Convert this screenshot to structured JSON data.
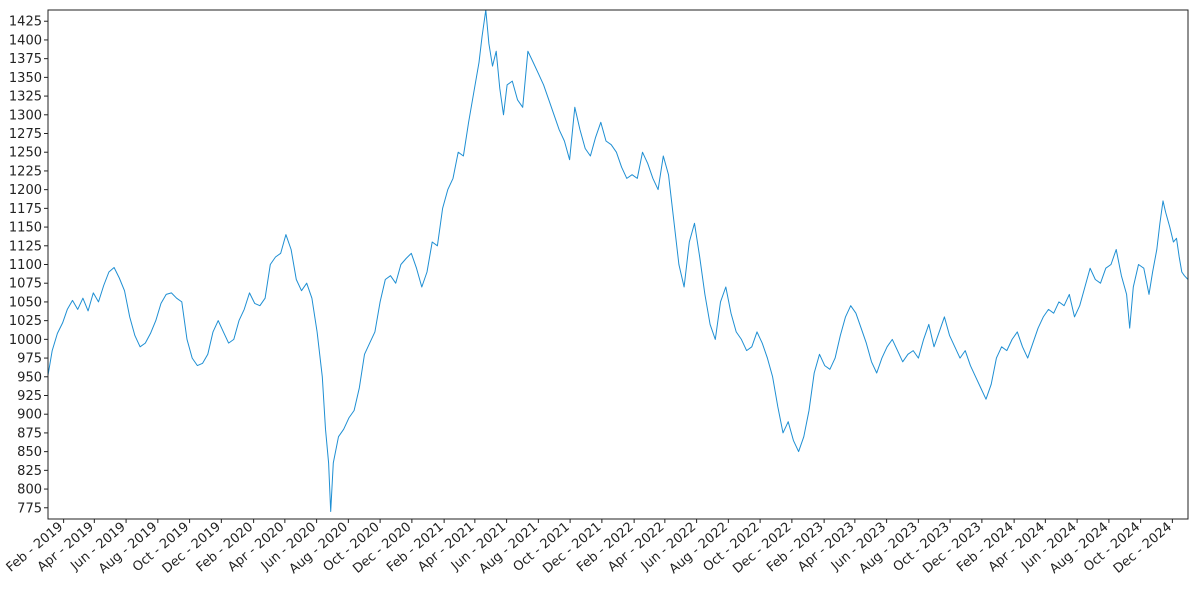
{
  "chart_data": {
    "type": "line",
    "title": "",
    "xlabel": "",
    "ylabel": "",
    "grid": false,
    "legend": "none",
    "ylim": [
      760,
      1440
    ],
    "xlim": [
      "2019-01-02",
      "2024-12-31"
    ],
    "yticks": [
      775,
      800,
      825,
      850,
      875,
      900,
      925,
      950,
      975,
      1000,
      1025,
      1050,
      1075,
      1100,
      1125,
      1150,
      1175,
      1200,
      1225,
      1250,
      1275,
      1300,
      1325,
      1350,
      1375,
      1400,
      1425
    ],
    "xticks": [
      {
        "date": "2019-02-01",
        "label": "Feb - 2019"
      },
      {
        "date": "2019-04-01",
        "label": "Apr - 2019"
      },
      {
        "date": "2019-06-01",
        "label": "Jun - 2019"
      },
      {
        "date": "2019-08-01",
        "label": "Aug - 2019"
      },
      {
        "date": "2019-10-01",
        "label": "Oct - 2019"
      },
      {
        "date": "2019-12-01",
        "label": "Dec - 2019"
      },
      {
        "date": "2020-02-01",
        "label": "Feb - 2020"
      },
      {
        "date": "2020-04-01",
        "label": "Apr - 2020"
      },
      {
        "date": "2020-06-01",
        "label": "Jun - 2020"
      },
      {
        "date": "2020-08-01",
        "label": "Aug - 2020"
      },
      {
        "date": "2020-10-01",
        "label": "Oct - 2020"
      },
      {
        "date": "2020-12-01",
        "label": "Dec - 2020"
      },
      {
        "date": "2021-02-01",
        "label": "Feb - 2021"
      },
      {
        "date": "2021-04-01",
        "label": "Apr - 2021"
      },
      {
        "date": "2021-06-01",
        "label": "Jun - 2021"
      },
      {
        "date": "2021-08-01",
        "label": "Aug - 2021"
      },
      {
        "date": "2021-10-01",
        "label": "Oct - 2021"
      },
      {
        "date": "2021-12-01",
        "label": "Dec - 2021"
      },
      {
        "date": "2022-02-01",
        "label": "Feb - 2022"
      },
      {
        "date": "2022-04-01",
        "label": "Apr - 2022"
      },
      {
        "date": "2022-06-01",
        "label": "Jun - 2022"
      },
      {
        "date": "2022-08-01",
        "label": "Aug - 2022"
      },
      {
        "date": "2022-10-01",
        "label": "Oct - 2022"
      },
      {
        "date": "2022-12-01",
        "label": "Dec - 2022"
      },
      {
        "date": "2023-02-01",
        "label": "Feb - 2023"
      },
      {
        "date": "2023-04-01",
        "label": "Apr - 2023"
      },
      {
        "date": "2023-06-01",
        "label": "Jun - 2023"
      },
      {
        "date": "2023-08-01",
        "label": "Aug - 2023"
      },
      {
        "date": "2023-10-01",
        "label": "Oct - 2023"
      },
      {
        "date": "2023-12-01",
        "label": "Dec - 2023"
      },
      {
        "date": "2024-02-01",
        "label": "Feb - 2024"
      },
      {
        "date": "2024-04-01",
        "label": "Apr - 2024"
      },
      {
        "date": "2024-06-01",
        "label": "Jun - 2024"
      },
      {
        "date": "2024-08-01",
        "label": "Aug - 2024"
      },
      {
        "date": "2024-10-01",
        "label": "Oct - 2024"
      },
      {
        "date": "2024-12-01",
        "label": "Dec - 2024"
      }
    ],
    "series": [
      {
        "color": "#1f8fd3",
        "points": [
          [
            "2019-01-02",
            952
          ],
          [
            "2019-01-10",
            985
          ],
          [
            "2019-01-20",
            1008
          ],
          [
            "2019-01-30",
            1022
          ],
          [
            "2019-02-08",
            1040
          ],
          [
            "2019-02-18",
            1052
          ],
          [
            "2019-02-28",
            1040
          ],
          [
            "2019-03-10",
            1055
          ],
          [
            "2019-03-20",
            1038
          ],
          [
            "2019-03-30",
            1062
          ],
          [
            "2019-04-09",
            1050
          ],
          [
            "2019-04-19",
            1072
          ],
          [
            "2019-04-29",
            1090
          ],
          [
            "2019-05-09",
            1096
          ],
          [
            "2019-05-19",
            1082
          ],
          [
            "2019-05-29",
            1065
          ],
          [
            "2019-06-08",
            1030
          ],
          [
            "2019-06-18",
            1005
          ],
          [
            "2019-06-28",
            990
          ],
          [
            "2019-07-08",
            995
          ],
          [
            "2019-07-18",
            1008
          ],
          [
            "2019-07-28",
            1025
          ],
          [
            "2019-08-07",
            1048
          ],
          [
            "2019-08-17",
            1060
          ],
          [
            "2019-08-27",
            1062
          ],
          [
            "2019-09-06",
            1055
          ],
          [
            "2019-09-16",
            1050
          ],
          [
            "2019-09-26",
            1000
          ],
          [
            "2019-10-06",
            975
          ],
          [
            "2019-10-16",
            965
          ],
          [
            "2019-10-26",
            968
          ],
          [
            "2019-11-05",
            980
          ],
          [
            "2019-11-15",
            1010
          ],
          [
            "2019-11-25",
            1025
          ],
          [
            "2019-12-05",
            1010
          ],
          [
            "2019-12-15",
            995
          ],
          [
            "2019-12-25",
            1000
          ],
          [
            "2020-01-04",
            1025
          ],
          [
            "2020-01-14",
            1040
          ],
          [
            "2020-01-24",
            1062
          ],
          [
            "2020-02-03",
            1048
          ],
          [
            "2020-02-13",
            1045
          ],
          [
            "2020-02-23",
            1055
          ],
          [
            "2020-03-04",
            1100
          ],
          [
            "2020-03-14",
            1110
          ],
          [
            "2020-03-24",
            1115
          ],
          [
            "2020-04-03",
            1140
          ],
          [
            "2020-04-13",
            1120
          ],
          [
            "2020-04-23",
            1080
          ],
          [
            "2020-05-03",
            1065
          ],
          [
            "2020-05-13",
            1075
          ],
          [
            "2020-05-23",
            1055
          ],
          [
            "2020-06-02",
            1010
          ],
          [
            "2020-06-12",
            950
          ],
          [
            "2020-06-18",
            880
          ],
          [
            "2020-06-24",
            835
          ],
          [
            "2020-06-28",
            770
          ],
          [
            "2020-07-03",
            835
          ],
          [
            "2020-07-13",
            870
          ],
          [
            "2020-07-23",
            880
          ],
          [
            "2020-08-02",
            895
          ],
          [
            "2020-08-12",
            905
          ],
          [
            "2020-08-22",
            935
          ],
          [
            "2020-09-01",
            980
          ],
          [
            "2020-09-11",
            995
          ],
          [
            "2020-09-21",
            1010
          ],
          [
            "2020-10-01",
            1050
          ],
          [
            "2020-10-11",
            1080
          ],
          [
            "2020-10-21",
            1085
          ],
          [
            "2020-10-31",
            1075
          ],
          [
            "2020-11-10",
            1100
          ],
          [
            "2020-11-20",
            1108
          ],
          [
            "2020-11-30",
            1115
          ],
          [
            "2020-12-10",
            1095
          ],
          [
            "2020-12-20",
            1070
          ],
          [
            "2020-12-30",
            1090
          ],
          [
            "2021-01-09",
            1130
          ],
          [
            "2021-01-19",
            1125
          ],
          [
            "2021-01-29",
            1175
          ],
          [
            "2021-02-08",
            1200
          ],
          [
            "2021-02-18",
            1215
          ],
          [
            "2021-02-28",
            1250
          ],
          [
            "2021-03-10",
            1245
          ],
          [
            "2021-03-20",
            1290
          ],
          [
            "2021-03-30",
            1330
          ],
          [
            "2021-04-09",
            1370
          ],
          [
            "2021-04-15",
            1405
          ],
          [
            "2021-04-22",
            1440
          ],
          [
            "2021-04-28",
            1395
          ],
          [
            "2021-05-05",
            1365
          ],
          [
            "2021-05-12",
            1385
          ],
          [
            "2021-05-19",
            1335
          ],
          [
            "2021-05-26",
            1300
          ],
          [
            "2021-06-02",
            1340
          ],
          [
            "2021-06-12",
            1345
          ],
          [
            "2021-06-22",
            1320
          ],
          [
            "2021-07-02",
            1310
          ],
          [
            "2021-07-12",
            1385
          ],
          [
            "2021-07-22",
            1370
          ],
          [
            "2021-08-01",
            1355
          ],
          [
            "2021-08-11",
            1340
          ],
          [
            "2021-08-21",
            1320
          ],
          [
            "2021-08-31",
            1300
          ],
          [
            "2021-09-10",
            1280
          ],
          [
            "2021-09-20",
            1265
          ],
          [
            "2021-09-30",
            1240
          ],
          [
            "2021-10-10",
            1310
          ],
          [
            "2021-10-20",
            1280
          ],
          [
            "2021-10-30",
            1255
          ],
          [
            "2021-11-09",
            1245
          ],
          [
            "2021-11-19",
            1270
          ],
          [
            "2021-11-29",
            1290
          ],
          [
            "2021-12-09",
            1265
          ],
          [
            "2021-12-19",
            1260
          ],
          [
            "2021-12-29",
            1250
          ],
          [
            "2022-01-08",
            1230
          ],
          [
            "2022-01-18",
            1215
          ],
          [
            "2022-01-28",
            1220
          ],
          [
            "2022-02-07",
            1215
          ],
          [
            "2022-02-17",
            1250
          ],
          [
            "2022-02-27",
            1235
          ],
          [
            "2022-03-09",
            1215
          ],
          [
            "2022-03-19",
            1200
          ],
          [
            "2022-03-29",
            1245
          ],
          [
            "2022-04-08",
            1220
          ],
          [
            "2022-04-18",
            1160
          ],
          [
            "2022-04-28",
            1100
          ],
          [
            "2022-05-08",
            1070
          ],
          [
            "2022-05-18",
            1130
          ],
          [
            "2022-05-28",
            1155
          ],
          [
            "2022-06-07",
            1110
          ],
          [
            "2022-06-17",
            1060
          ],
          [
            "2022-06-27",
            1020
          ],
          [
            "2022-07-07",
            1000
          ],
          [
            "2022-07-17",
            1050
          ],
          [
            "2022-07-27",
            1070
          ],
          [
            "2022-08-06",
            1035
          ],
          [
            "2022-08-16",
            1010
          ],
          [
            "2022-08-26",
            1000
          ],
          [
            "2022-09-05",
            985
          ],
          [
            "2022-09-15",
            990
          ],
          [
            "2022-09-25",
            1010
          ],
          [
            "2022-10-05",
            995
          ],
          [
            "2022-10-15",
            975
          ],
          [
            "2022-10-25",
            950
          ],
          [
            "2022-11-04",
            910
          ],
          [
            "2022-11-14",
            875
          ],
          [
            "2022-11-24",
            890
          ],
          [
            "2022-12-04",
            865
          ],
          [
            "2022-12-14",
            850
          ],
          [
            "2022-12-24",
            870
          ],
          [
            "2023-01-03",
            905
          ],
          [
            "2023-01-13",
            955
          ],
          [
            "2023-01-23",
            980
          ],
          [
            "2023-02-02",
            965
          ],
          [
            "2023-02-12",
            960
          ],
          [
            "2023-02-22",
            975
          ],
          [
            "2023-03-04",
            1005
          ],
          [
            "2023-03-14",
            1030
          ],
          [
            "2023-03-24",
            1045
          ],
          [
            "2023-04-03",
            1035
          ],
          [
            "2023-04-13",
            1015
          ],
          [
            "2023-04-23",
            995
          ],
          [
            "2023-05-03",
            970
          ],
          [
            "2023-05-13",
            955
          ],
          [
            "2023-05-23",
            975
          ],
          [
            "2023-06-02",
            990
          ],
          [
            "2023-06-12",
            1000
          ],
          [
            "2023-06-22",
            985
          ],
          [
            "2023-07-02",
            970
          ],
          [
            "2023-07-12",
            980
          ],
          [
            "2023-07-22",
            985
          ],
          [
            "2023-08-01",
            975
          ],
          [
            "2023-08-11",
            1000
          ],
          [
            "2023-08-21",
            1020
          ],
          [
            "2023-08-31",
            990
          ],
          [
            "2023-09-10",
            1010
          ],
          [
            "2023-09-20",
            1030
          ],
          [
            "2023-09-30",
            1005
          ],
          [
            "2023-10-10",
            990
          ],
          [
            "2023-10-20",
            975
          ],
          [
            "2023-10-30",
            985
          ],
          [
            "2023-11-09",
            965
          ],
          [
            "2023-11-19",
            950
          ],
          [
            "2023-11-29",
            935
          ],
          [
            "2023-12-09",
            920
          ],
          [
            "2023-12-19",
            940
          ],
          [
            "2023-12-29",
            975
          ],
          [
            "2024-01-08",
            990
          ],
          [
            "2024-01-18",
            985
          ],
          [
            "2024-01-28",
            1000
          ],
          [
            "2024-02-07",
            1010
          ],
          [
            "2024-02-17",
            990
          ],
          [
            "2024-02-27",
            975
          ],
          [
            "2024-03-08",
            995
          ],
          [
            "2024-03-18",
            1015
          ],
          [
            "2024-03-28",
            1030
          ],
          [
            "2024-04-07",
            1040
          ],
          [
            "2024-04-17",
            1035
          ],
          [
            "2024-04-27",
            1050
          ],
          [
            "2024-05-07",
            1045
          ],
          [
            "2024-05-17",
            1060
          ],
          [
            "2024-05-27",
            1030
          ],
          [
            "2024-06-06",
            1045
          ],
          [
            "2024-06-16",
            1070
          ],
          [
            "2024-06-26",
            1095
          ],
          [
            "2024-07-06",
            1080
          ],
          [
            "2024-07-16",
            1075
          ],
          [
            "2024-07-26",
            1095
          ],
          [
            "2024-08-05",
            1100
          ],
          [
            "2024-08-15",
            1120
          ],
          [
            "2024-08-25",
            1085
          ],
          [
            "2024-09-04",
            1060
          ],
          [
            "2024-09-10",
            1015
          ],
          [
            "2024-09-17",
            1070
          ],
          [
            "2024-09-27",
            1100
          ],
          [
            "2024-10-07",
            1095
          ],
          [
            "2024-10-17",
            1060
          ],
          [
            "2024-10-24",
            1090
          ],
          [
            "2024-11-01",
            1120
          ],
          [
            "2024-11-07",
            1155
          ],
          [
            "2024-11-13",
            1185
          ],
          [
            "2024-11-18",
            1170
          ],
          [
            "2024-11-26",
            1150
          ],
          [
            "2024-12-03",
            1130
          ],
          [
            "2024-12-09",
            1135
          ],
          [
            "2024-12-14",
            1110
          ],
          [
            "2024-12-19",
            1090
          ],
          [
            "2024-12-24",
            1085
          ],
          [
            "2024-12-31",
            1080
          ]
        ]
      }
    ]
  }
}
